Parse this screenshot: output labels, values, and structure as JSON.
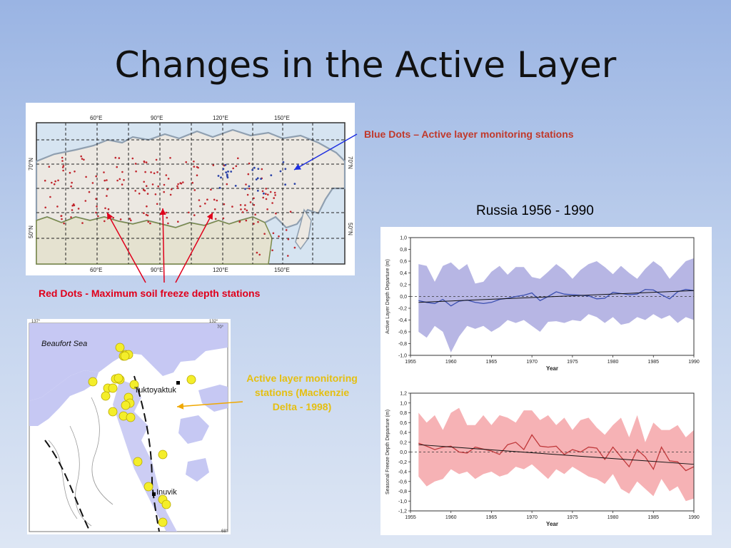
{
  "title": "Changes in the Active Layer",
  "labels": {
    "blue_dots": "Blue Dots – Active layer monitoring stations",
    "red_dots": "Red Dots - Maximum soil freeze depth stations",
    "active_layer": "Active layer monitoring stations (Mackenzie Delta - 1998)",
    "russia_years": "Russia 1956 - 1990"
  },
  "russia_map": {
    "top_ticks": [
      "60°E",
      "90°E",
      "120°E",
      "150°E"
    ],
    "bottom_ticks": [
      "60°E",
      "90°E",
      "120°E",
      "150°E"
    ],
    "left_ticks": [
      "70°N",
      "50°N"
    ],
    "right_ticks": [
      "70°N",
      "50°N"
    ]
  },
  "canada_map": {
    "sea": "Beaufort Sea",
    "town1": "Tuktoyaktuk",
    "town2": "Inuvik",
    "tick_tl": "137°",
    "tick_tr": "132°",
    "tick_r1": "70°",
    "tick_br": "68°"
  },
  "colors": {
    "blue_band": "#b7b6e4",
    "blue_line": "#3b4fb0",
    "red_band": "#f6b2b5",
    "red_line": "#c0393b",
    "station": "#f4ee2a"
  },
  "chart_data": [
    {
      "type": "line",
      "xlabel": "Year",
      "ylabel": "Active Layer Depth Departure (m)",
      "x_ticks": [
        1955,
        1960,
        1965,
        1970,
        1975,
        1980,
        1985,
        1990
      ],
      "y_ticks": [
        "1,0",
        "0,8",
        "0,6",
        "0,4",
        "0,2",
        "0,0",
        "-0,2",
        "-0,4",
        "-0,6",
        "-0,8",
        "-1,0"
      ],
      "xlim": [
        1955,
        1990
      ],
      "ylim": [
        -1.0,
        1.0
      ],
      "x": [
        1956,
        1957,
        1958,
        1959,
        1960,
        1961,
        1962,
        1963,
        1964,
        1965,
        1966,
        1967,
        1968,
        1969,
        1970,
        1971,
        1972,
        1973,
        1974,
        1975,
        1976,
        1977,
        1978,
        1979,
        1980,
        1981,
        1982,
        1983,
        1984,
        1985,
        1986,
        1987,
        1988,
        1989,
        1990
      ],
      "values": [
        -0.07,
        -0.1,
        -0.12,
        -0.05,
        -0.16,
        -0.08,
        -0.06,
        -0.1,
        -0.12,
        -0.1,
        -0.05,
        -0.03,
        0.0,
        0.02,
        0.06,
        -0.07,
        0.0,
        0.08,
        0.04,
        0.03,
        0.02,
        0.01,
        -0.04,
        -0.03,
        0.07,
        0.05,
        0.03,
        0.04,
        0.12,
        0.11,
        0.03,
        -0.04,
        0.08,
        0.12,
        0.1
      ],
      "trend": [
        -0.1,
        0.1
      ],
      "band_upper": [
        0.55,
        0.52,
        0.25,
        0.52,
        0.58,
        0.45,
        0.55,
        0.22,
        0.25,
        0.42,
        0.52,
        0.37,
        0.5,
        0.5,
        0.33,
        0.3,
        0.42,
        0.55,
        0.45,
        0.3,
        0.45,
        0.55,
        0.6,
        0.5,
        0.38,
        0.52,
        0.4,
        0.3,
        0.47,
        0.6,
        0.5,
        0.3,
        0.45,
        0.6,
        0.65
      ],
      "band_lower": [
        -0.6,
        -0.7,
        -0.5,
        -0.6,
        -0.95,
        -0.68,
        -0.5,
        -0.55,
        -0.5,
        -0.6,
        -0.52,
        -0.4,
        -0.45,
        -0.4,
        -0.5,
        -0.6,
        -0.43,
        -0.42,
        -0.45,
        -0.4,
        -0.42,
        -0.3,
        -0.35,
        -0.45,
        -0.35,
        -0.48,
        -0.45,
        -0.35,
        -0.4,
        -0.3,
        -0.38,
        -0.32,
        -0.45,
        -0.35,
        -0.4
      ]
    },
    {
      "type": "line",
      "xlabel": "Year",
      "ylabel": "Seasonal Freeze Depth Departure (m)",
      "x_ticks": [
        1955,
        1960,
        1965,
        1970,
        1975,
        1980,
        1985,
        1990
      ],
      "y_ticks": [
        "1,2",
        "1,0",
        "0,8",
        "0,6",
        "0,4",
        "0,2",
        "0,0",
        "-0,2",
        "-0,4",
        "-0,6",
        "-0,8",
        "-1,0",
        "-1,2"
      ],
      "xlim": [
        1955,
        1990
      ],
      "ylim": [
        -1.2,
        1.2
      ],
      "x": [
        1956,
        1957,
        1958,
        1959,
        1960,
        1961,
        1962,
        1963,
        1964,
        1965,
        1966,
        1967,
        1968,
        1969,
        1970,
        1971,
        1972,
        1973,
        1974,
        1975,
        1976,
        1977,
        1978,
        1979,
        1980,
        1981,
        1982,
        1983,
        1984,
        1985,
        1986,
        1987,
        1988,
        1989,
        1990
      ],
      "values": [
        0.18,
        0.12,
        0.05,
        0.1,
        0.12,
        0.0,
        -0.02,
        0.1,
        0.06,
        0.02,
        -0.05,
        0.15,
        0.2,
        0.05,
        0.35,
        0.12,
        0.1,
        0.12,
        -0.05,
        0.05,
        0.0,
        0.1,
        0.08,
        -0.15,
        0.1,
        -0.1,
        -0.3,
        0.05,
        -0.1,
        -0.35,
        0.1,
        -0.18,
        -0.2,
        -0.38,
        -0.3
      ],
      "trend": [
        0.15,
        -0.25
      ],
      "band_upper": [
        0.8,
        0.6,
        0.75,
        0.45,
        0.8,
        0.9,
        0.55,
        0.55,
        0.75,
        0.55,
        0.75,
        0.7,
        0.6,
        0.85,
        0.85,
        0.65,
        0.75,
        0.55,
        0.7,
        0.45,
        0.65,
        0.7,
        0.5,
        0.35,
        0.55,
        0.7,
        0.3,
        0.75,
        0.2,
        0.6,
        0.45,
        0.45,
        0.55,
        0.3,
        0.45
      ],
      "band_lower": [
        -0.5,
        -0.7,
        -0.6,
        -0.55,
        -0.35,
        -0.45,
        -0.4,
        -0.55,
        -0.45,
        -0.4,
        -0.5,
        -0.45,
        -0.3,
        -0.35,
        -0.25,
        -0.4,
        -0.55,
        -0.35,
        -0.45,
        -0.3,
        -0.4,
        -0.5,
        -0.55,
        -0.65,
        -0.45,
        -0.75,
        -0.85,
        -0.6,
        -0.75,
        -0.9,
        -0.55,
        -0.8,
        -0.7,
        -1.0,
        -0.95
      ]
    }
  ]
}
